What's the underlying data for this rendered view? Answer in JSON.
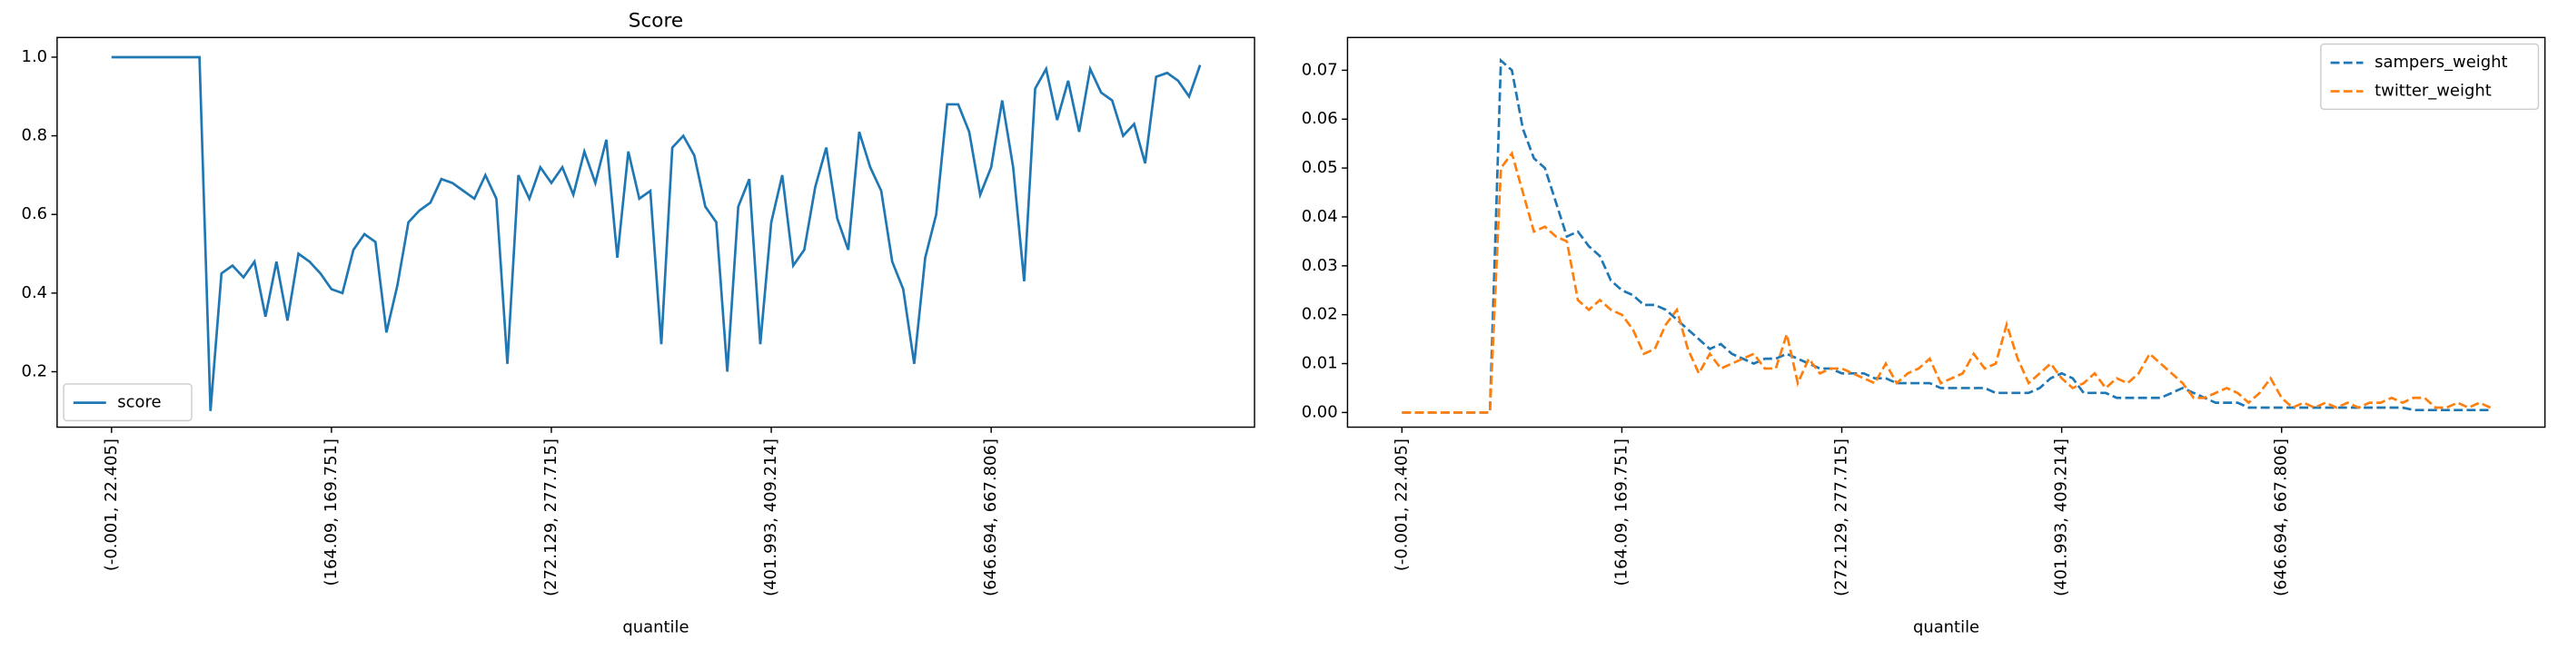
{
  "chart_data": [
    {
      "type": "line",
      "title": "Score",
      "x_label": "quantile",
      "categories": [
        "(-0.001, 22.405]",
        null,
        null,
        null,
        null,
        null,
        null,
        null,
        null,
        null,
        null,
        null,
        null,
        null,
        null,
        null,
        null,
        null,
        null,
        null,
        "(164.09, 169.751]",
        null,
        null,
        null,
        null,
        null,
        null,
        null,
        null,
        null,
        null,
        null,
        null,
        null,
        null,
        null,
        null,
        null,
        null,
        null,
        "(272.129, 277.715]",
        null,
        null,
        null,
        null,
        null,
        null,
        null,
        null,
        null,
        null,
        null,
        null,
        null,
        null,
        null,
        null,
        null,
        null,
        null,
        "(401.993, 409.214]",
        null,
        null,
        null,
        null,
        null,
        null,
        null,
        null,
        null,
        null,
        null,
        null,
        null,
        null,
        null,
        null,
        null,
        null,
        null,
        "(646.694, 667.806]",
        null,
        null,
        null,
        null,
        null,
        null,
        null,
        null,
        null,
        null,
        null,
        null,
        null,
        null,
        null,
        null,
        null,
        null,
        null
      ],
      "series": [
        {
          "name": "score",
          "color": "#1f77b4",
          "linestyle": "solid",
          "values": [
            1,
            1,
            1,
            1,
            1,
            1,
            1,
            1,
            1,
            0.1,
            0.45,
            0.47,
            0.44,
            0.48,
            0.34,
            0.48,
            0.33,
            0.5,
            0.48,
            0.45,
            0.41,
            0.4,
            0.51,
            0.55,
            0.53,
            0.3,
            0.42,
            0.58,
            0.61,
            0.63,
            0.69,
            0.68,
            0.66,
            0.64,
            0.7,
            0.64,
            0.22,
            0.7,
            0.64,
            0.72,
            0.68,
            0.72,
            0.65,
            0.76,
            0.68,
            0.79,
            0.49,
            0.76,
            0.64,
            0.66,
            0.27,
            0.77,
            0.8,
            0.75,
            0.62,
            0.58,
            0.2,
            0.62,
            0.69,
            0.27,
            0.58,
            0.7,
            0.47,
            0.51,
            0.67,
            0.77,
            0.59,
            0.51,
            0.81,
            0.72,
            0.66,
            0.48,
            0.41,
            0.22,
            0.49,
            0.6,
            0.88,
            0.88,
            0.81,
            0.65,
            0.72,
            0.89,
            0.72,
            0.43,
            0.92,
            0.97,
            0.84,
            0.94,
            0.81,
            0.97,
            0.91,
            0.89,
            0.8,
            0.83,
            0.73,
            0.95,
            0.96,
            0.94,
            0.9,
            0.98
          ]
        }
      ],
      "ylim": [
        0.059,
        1.05
      ],
      "yticks": [
        0.2,
        0.4,
        0.6,
        0.8,
        {
          "value": 1,
          "label": "1.0"
        }
      ],
      "legend": "lower left"
    },
    {
      "type": "line",
      "x_label": "quantile",
      "categories": [
        "(-0.001, 22.405]",
        null,
        null,
        null,
        null,
        null,
        null,
        null,
        null,
        null,
        null,
        null,
        null,
        null,
        null,
        null,
        null,
        null,
        null,
        null,
        "(164.09, 169.751]",
        null,
        null,
        null,
        null,
        null,
        null,
        null,
        null,
        null,
        null,
        null,
        null,
        null,
        null,
        null,
        null,
        null,
        null,
        null,
        "(272.129, 277.715]",
        null,
        null,
        null,
        null,
        null,
        null,
        null,
        null,
        null,
        null,
        null,
        null,
        null,
        null,
        null,
        null,
        null,
        null,
        null,
        "(401.993, 409.214]",
        null,
        null,
        null,
        null,
        null,
        null,
        null,
        null,
        null,
        null,
        null,
        null,
        null,
        null,
        null,
        null,
        null,
        null,
        null,
        "(646.694, 667.806]",
        null,
        null,
        null,
        null,
        null,
        null,
        null,
        null,
        null,
        null,
        null,
        null,
        null,
        null,
        null,
        null,
        null,
        null,
        null
      ],
      "series": [
        {
          "name": "sampers_weight",
          "color": "#1f77b4",
          "linestyle": "dashed",
          "values": [
            0,
            0,
            0,
            0,
            0,
            0,
            0,
            0,
            0,
            0.072,
            0.07,
            0.058,
            0.052,
            0.05,
            0.043,
            0.036,
            0.037,
            0.034,
            0.032,
            0.027,
            0.025,
            0.024,
            0.022,
            0.022,
            0.021,
            0.019,
            0.017,
            0.015,
            0.013,
            0.014,
            0.012,
            0.011,
            0.01,
            0.011,
            0.011,
            0.012,
            0.011,
            0.01,
            0.009,
            0.009,
            0.008,
            0.008,
            0.008,
            0.007,
            0.007,
            0.006,
            0.006,
            0.006,
            0.006,
            0.005,
            0.005,
            0.005,
            0.005,
            0.005,
            0.004,
            0.004,
            0.004,
            0.004,
            0.005,
            0.007,
            0.008,
            0.007,
            0.004,
            0.004,
            0.004,
            0.003,
            0.003,
            0.003,
            0.003,
            0.003,
            0.004,
            0.005,
            0.004,
            0.003,
            0.002,
            0.002,
            0.002,
            0.001,
            0.001,
            0.001,
            0.001,
            0.001,
            0.001,
            0.001,
            0.001,
            0.001,
            0.001,
            0.001,
            0.001,
            0.001,
            0.001,
            0.001,
            0.0005,
            0.0005,
            0.0005,
            0.0005,
            0.0005,
            0.0005,
            0.0005,
            0.0005
          ]
        },
        {
          "name": "twitter_weight",
          "color": "#ff7f0e",
          "linestyle": "dashed",
          "values": [
            0,
            0,
            0,
            0,
            0,
            0,
            0,
            0,
            0,
            0.05,
            0.053,
            0.045,
            0.037,
            0.038,
            0.036,
            0.035,
            0.023,
            0.021,
            0.023,
            0.021,
            0.02,
            0.017,
            0.012,
            0.013,
            0.018,
            0.021,
            0.013,
            0.008,
            0.012,
            0.009,
            0.01,
            0.011,
            0.012,
            0.009,
            0.009,
            0.016,
            0.006,
            0.011,
            0.008,
            0.009,
            0.009,
            0.008,
            0.007,
            0.006,
            0.01,
            0.006,
            0.008,
            0.009,
            0.011,
            0.006,
            0.007,
            0.008,
            0.012,
            0.009,
            0.01,
            0.018,
            0.011,
            0.006,
            0.008,
            0.01,
            0.007,
            0.005,
            0.006,
            0.008,
            0.005,
            0.007,
            0.006,
            0.008,
            0.012,
            0.01,
            0.008,
            0.006,
            0.003,
            0.003,
            0.004,
            0.005,
            0.004,
            0.002,
            0.004,
            0.007,
            0.003,
            0.001,
            0.002,
            0.001,
            0.002,
            0.001,
            0.002,
            0.001,
            0.002,
            0.002,
            0.003,
            0.002,
            0.003,
            0.003,
            0.001,
            0.001,
            0.002,
            0.001,
            0.002,
            0.001
          ]
        }
      ],
      "ylim": [
        -0.003,
        0.0767
      ],
      "yticks": [
        {
          "value": 0,
          "label": "0.00"
        },
        {
          "value": 0.01,
          "label": "0.01"
        },
        {
          "value": 0.02,
          "label": "0.02"
        },
        {
          "value": 0.03,
          "label": "0.03"
        },
        {
          "value": 0.04,
          "label": "0.04"
        },
        {
          "value": 0.05,
          "label": "0.05"
        },
        {
          "value": 0.06,
          "label": "0.06"
        },
        {
          "value": 0.07,
          "label": "0.07"
        }
      ],
      "legend": "upper right"
    }
  ]
}
